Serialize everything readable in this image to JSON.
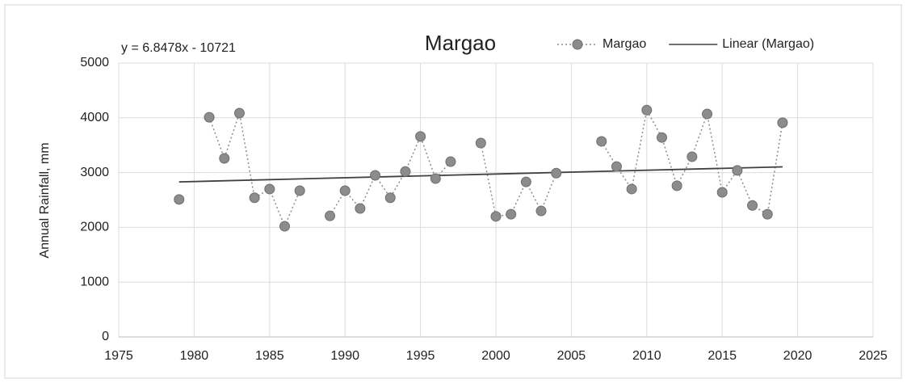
{
  "chart_data": {
    "type": "scatter",
    "title": "Margao",
    "annotation": "y = 6.8478x - 10721",
    "y_label": "Annual Rainfall, mm",
    "xlim": [
      1975,
      2025
    ],
    "xticks": [
      1975,
      1980,
      1985,
      1990,
      1995,
      2000,
      2005,
      2010,
      2015,
      2020,
      2025
    ],
    "ylim": [
      0,
      5000
    ],
    "yticks": [
      0,
      1000,
      2000,
      3000,
      4000,
      5000
    ],
    "grid": true,
    "legend": "top-right",
    "series": [
      {
        "name": "Margao",
        "color": "#8c8c8c",
        "line_style": "dotted",
        "x": [
          1979,
          1980,
          1981,
          1982,
          1983,
          1984,
          1985,
          1986,
          1987,
          1988,
          1989,
          1990,
          1991,
          1992,
          1993,
          1994,
          1995,
          1996,
          1997,
          1998,
          1999,
          2000,
          2001,
          2002,
          2003,
          2004,
          2005,
          2006,
          2007,
          2008,
          2009,
          2010,
          2011,
          2012,
          2013,
          2014,
          2015,
          2016,
          2017,
          2018,
          2019
        ],
        "values": [
          2510,
          null,
          4010,
          3260,
          4085,
          2540,
          2700,
          2020,
          2670,
          null,
          2210,
          2670,
          2345,
          2950,
          2540,
          3020,
          3660,
          2890,
          3200,
          null,
          3540,
          2200,
          2240,
          2830,
          2300,
          2990,
          null,
          null,
          3570,
          3110,
          2700,
          4140,
          3640,
          2760,
          3290,
          4070,
          2640,
          3040,
          2400,
          2240,
          3910
        ]
      },
      {
        "name": "Linear (Margao)",
        "color": "#404040",
        "line_style": "solid",
        "x": [
          1979,
          2019
        ],
        "values": [
          2830,
          3105
        ]
      }
    ]
  }
}
